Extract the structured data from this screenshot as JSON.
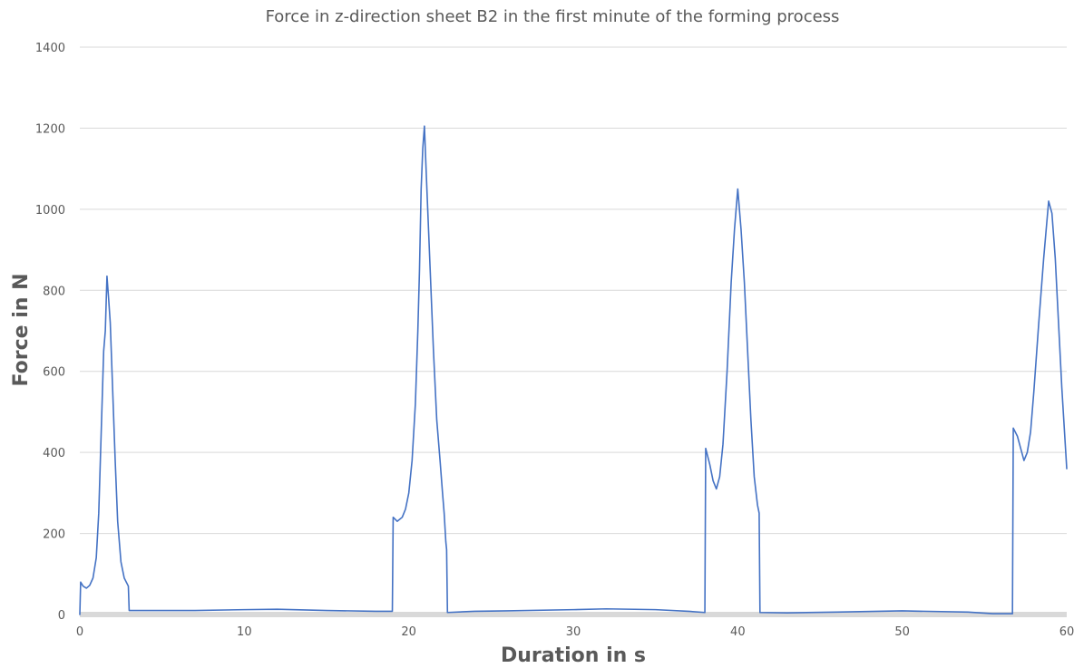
{
  "chart_data": {
    "type": "line",
    "title": "Force in z-direction sheet B2 in the first minute of the forming process",
    "xlabel": "Duration in s",
    "ylabel": "Force in N",
    "xlim": [
      0,
      60
    ],
    "ylim": [
      0,
      1400
    ],
    "x_ticks": [
      0,
      10,
      20,
      30,
      40,
      50,
      60
    ],
    "y_ticks": [
      0,
      200,
      400,
      600,
      800,
      1000,
      1200,
      1400
    ],
    "grid": true,
    "legend": "none",
    "series": [
      {
        "color": "#4472c4",
        "points": [
          [
            0,
            0
          ],
          [
            0.05,
            80
          ],
          [
            0.2,
            70
          ],
          [
            0.4,
            65
          ],
          [
            0.6,
            72
          ],
          [
            0.8,
            90
          ],
          [
            1.0,
            140
          ],
          [
            1.15,
            250
          ],
          [
            1.3,
            450
          ],
          [
            1.45,
            650
          ],
          [
            1.55,
            700
          ],
          [
            1.65,
            835
          ],
          [
            1.75,
            780
          ],
          [
            1.85,
            720
          ],
          [
            2.0,
            550
          ],
          [
            2.15,
            380
          ],
          [
            2.3,
            230
          ],
          [
            2.5,
            130
          ],
          [
            2.7,
            90
          ],
          [
            2.95,
            70
          ],
          [
            3.0,
            10
          ],
          [
            7,
            10
          ],
          [
            10,
            12
          ],
          [
            12,
            13
          ],
          [
            15,
            10
          ],
          [
            18,
            8
          ],
          [
            19.0,
            8
          ],
          [
            19.05,
            240
          ],
          [
            19.3,
            230
          ],
          [
            19.6,
            240
          ],
          [
            19.8,
            260
          ],
          [
            20.0,
            300
          ],
          [
            20.2,
            380
          ],
          [
            20.4,
            520
          ],
          [
            20.55,
            700
          ],
          [
            20.65,
            850
          ],
          [
            20.75,
            1050
          ],
          [
            20.85,
            1150
          ],
          [
            20.95,
            1205
          ],
          [
            21.05,
            1100
          ],
          [
            21.15,
            1000
          ],
          [
            21.3,
            850
          ],
          [
            21.5,
            650
          ],
          [
            21.7,
            480
          ],
          [
            21.9,
            380
          ],
          [
            22.05,
            300
          ],
          [
            22.15,
            250
          ],
          [
            22.25,
            180
          ],
          [
            22.3,
            160
          ],
          [
            22.35,
            5
          ],
          [
            24,
            8
          ],
          [
            26,
            9
          ],
          [
            30,
            12
          ],
          [
            32,
            14
          ],
          [
            35,
            12
          ],
          [
            37,
            8
          ],
          [
            38.0,
            5
          ],
          [
            38.05,
            410
          ],
          [
            38.3,
            370
          ],
          [
            38.5,
            330
          ],
          [
            38.7,
            310
          ],
          [
            38.9,
            340
          ],
          [
            39.1,
            420
          ],
          [
            39.35,
            600
          ],
          [
            39.6,
            820
          ],
          [
            39.8,
            950
          ],
          [
            40.0,
            1050
          ],
          [
            40.2,
            950
          ],
          [
            40.4,
            820
          ],
          [
            40.6,
            650
          ],
          [
            40.8,
            480
          ],
          [
            41.0,
            340
          ],
          [
            41.2,
            270
          ],
          [
            41.3,
            250
          ],
          [
            41.35,
            5
          ],
          [
            43,
            4
          ],
          [
            46,
            6
          ],
          [
            50,
            9
          ],
          [
            54,
            6
          ],
          [
            55.5,
            2
          ],
          [
            56.7,
            2
          ],
          [
            56.75,
            460
          ],
          [
            57.0,
            440
          ],
          [
            57.2,
            410
          ],
          [
            57.4,
            380
          ],
          [
            57.6,
            400
          ],
          [
            57.8,
            450
          ],
          [
            58.0,
            550
          ],
          [
            58.3,
            720
          ],
          [
            58.6,
            880
          ],
          [
            58.9,
            1020
          ],
          [
            59.1,
            990
          ],
          [
            59.3,
            880
          ],
          [
            59.5,
            720
          ],
          [
            59.7,
            560
          ],
          [
            59.85,
            460
          ],
          [
            60.0,
            360
          ]
        ]
      }
    ]
  }
}
